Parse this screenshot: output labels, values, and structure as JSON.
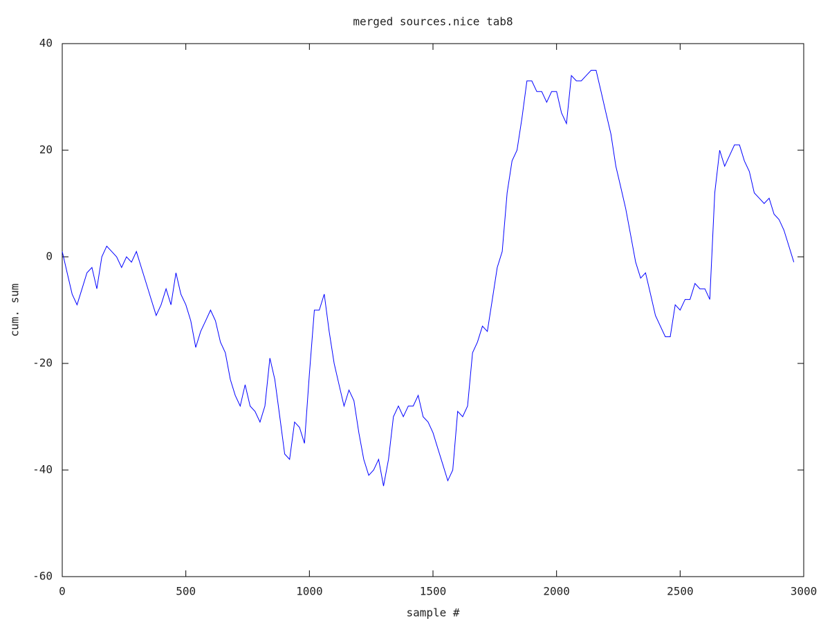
{
  "chart_data": {
    "type": "line",
    "title": "merged sources.nice tab8",
    "x_label": "sample #",
    "y_label": "cum. sum",
    "x": [
      0,
      20,
      40,
      60,
      80,
      100,
      120,
      140,
      160,
      180,
      200,
      220,
      240,
      260,
      280,
      300,
      320,
      340,
      360,
      380,
      400,
      420,
      440,
      460,
      480,
      500,
      520,
      540,
      560,
      580,
      600,
      620,
      640,
      660,
      680,
      700,
      720,
      740,
      760,
      780,
      800,
      820,
      840,
      860,
      880,
      900,
      920,
      940,
      960,
      980,
      1000,
      1020,
      1040,
      1060,
      1080,
      1100,
      1120,
      1140,
      1160,
      1180,
      1200,
      1220,
      1240,
      1260,
      1280,
      1300,
      1320,
      1340,
      1360,
      1380,
      1400,
      1420,
      1440,
      1460,
      1480,
      1500,
      1520,
      1540,
      1560,
      1580,
      1600,
      1620,
      1640,
      1660,
      1680,
      1700,
      1720,
      1740,
      1760,
      1780,
      1800,
      1820,
      1840,
      1860,
      1880,
      1900,
      1920,
      1940,
      1960,
      1980,
      2000,
      2020,
      2040,
      2060,
      2080,
      2100,
      2120,
      2140,
      2160,
      2180,
      2200,
      2220,
      2240,
      2260,
      2280,
      2300,
      2320,
      2340,
      2360,
      2380,
      2400,
      2420,
      2440,
      2460,
      2480,
      2500,
      2520,
      2540,
      2560,
      2580,
      2600,
      2620,
      2640,
      2660,
      2680,
      2700,
      2720,
      2740,
      2760,
      2780,
      2800,
      2820,
      2840,
      2860,
      2880,
      2900,
      2920,
      2940,
      2960
    ],
    "series": [
      {
        "color": "#0000ff",
        "values": [
          1,
          -3,
          -7,
          -9,
          -6,
          -3,
          -2,
          -6,
          0,
          2,
          1,
          0,
          -2,
          0,
          -1,
          1,
          -2,
          -5,
          -8,
          -11,
          -9,
          -6,
          -9,
          -3,
          -7,
          -9,
          -12,
          -17,
          -14,
          -12,
          -10,
          -12,
          -16,
          -18,
          -23,
          -26,
          -28,
          -24,
          -28,
          -29,
          -31,
          -28,
          -19,
          -23,
          -30,
          -37,
          -38,
          -31,
          -32,
          -35,
          -22,
          -10,
          -10,
          -7,
          -14,
          -20,
          -24,
          -28,
          -25,
          -27,
          -33,
          -38,
          -41,
          -40,
          -38,
          -43,
          -38,
          -30,
          -28,
          -30,
          -28,
          -28,
          -26,
          -30,
          -31,
          -33,
          -36,
          -39,
          -42,
          -40,
          -29,
          -30,
          -28,
          -18,
          -16,
          -13,
          -14,
          -8,
          -2,
          1,
          12,
          18,
          20,
          26,
          33,
          33,
          31,
          31,
          29,
          31,
          31,
          27,
          25,
          34,
          33,
          33,
          34,
          35,
          35,
          31,
          27,
          23,
          17,
          13,
          9,
          4,
          -1,
          -4,
          -3,
          -7,
          -11,
          -13,
          -15,
          -15,
          -9,
          -10,
          -8,
          -8,
          -5,
          -6,
          -6,
          -8,
          12,
          20,
          17,
          19,
          21,
          21,
          18,
          16,
          12,
          11,
          10,
          11,
          8,
          7,
          5,
          2,
          -1
        ]
      }
    ],
    "xlim": [
      0,
      3000
    ],
    "xticks": [
      0,
      500,
      1000,
      1500,
      2000,
      2500,
      3000
    ],
    "ylim": [
      -60,
      40
    ],
    "yticks": [
      -60,
      -40,
      -20,
      0,
      20,
      40
    ]
  }
}
